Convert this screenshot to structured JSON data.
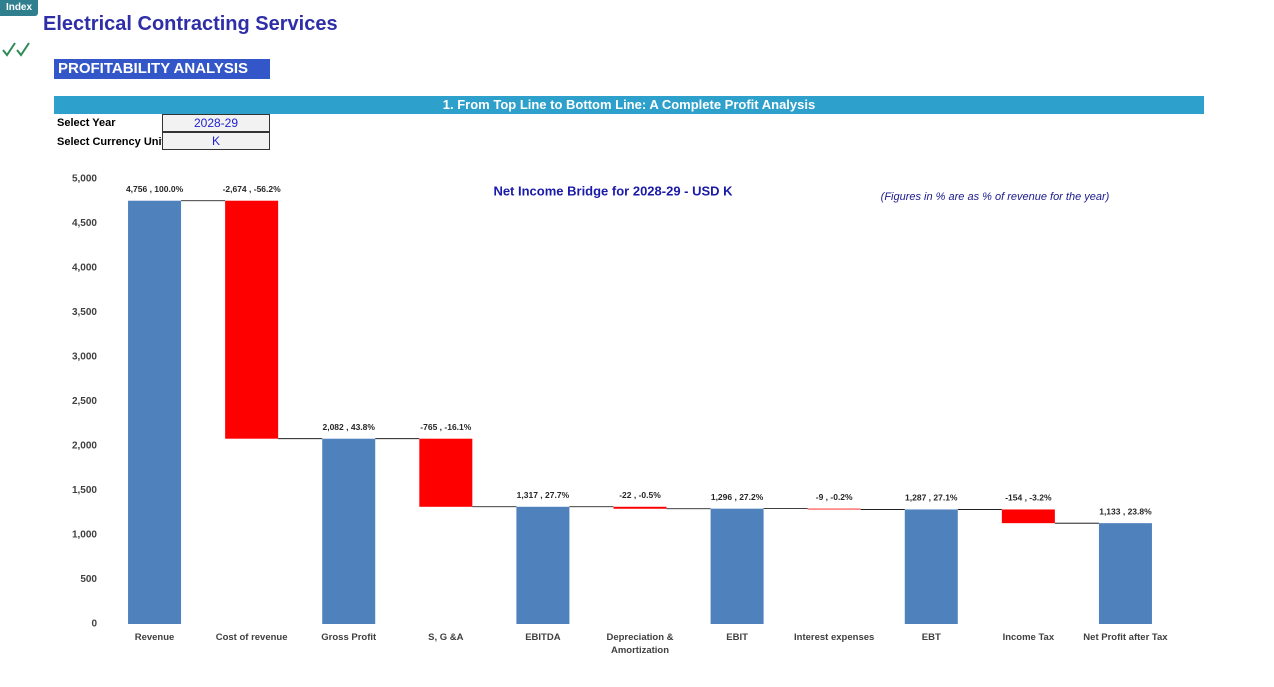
{
  "header": {
    "button": "Index",
    "title": "Electrical Contracting Services",
    "section": "PROFITABILITY ANALYSIS",
    "banner": "1. From Top Line to Bottom Line: A Complete Profit Analysis"
  },
  "controls": {
    "year_label": "Select Year",
    "year": "2028-29",
    "unit_label": "Select Currency Unit",
    "unit": "K"
  },
  "chart_data": {
    "type": "waterfall",
    "title": "Net Income Bridge for 2028-29 - USD K",
    "note": "(Figures in % are as % of revenue for the year)",
    "categories": [
      "Revenue",
      "Cost of revenue",
      "Gross Profit",
      "S, G &A",
      "EBITDA",
      "Depreciation & Amortization",
      "EBIT",
      "Interest expenses",
      "EBT",
      "Income Tax",
      "Net Profit after Tax"
    ],
    "values": [
      4756,
      -2674,
      2082,
      -765,
      1317,
      -22,
      1296,
      -9,
      1287,
      -154,
      1133
    ],
    "value_labels": [
      "4,756 , 100.0%",
      "-2,674 , -56.2%",
      "2,082 , 43.8%",
      "-765 , -16.1%",
      "1,317 , 27.7%",
      "-22 , -0.5%",
      "1,296 , 27.2%",
      "-9 , -0.2%",
      "1,287 , 27.1%",
      "-154 , -3.2%",
      "1,133 , 23.8%"
    ],
    "color": "#4f81bd",
    "negative_color": "#ff0000",
    "ylim": [
      0,
      5000
    ],
    "yticks": [
      0,
      500,
      {
        "value": 1000,
        "label": "1,000"
      },
      {
        "value": 1500,
        "label": "1,500"
      },
      {
        "value": 2000,
        "label": "2,000"
      },
      {
        "value": 2500,
        "label": "2,500"
      },
      {
        "value": 3000,
        "label": "3,000"
      },
      {
        "value": 3500,
        "label": "3,500"
      },
      {
        "value": 4000,
        "label": "4,000"
      },
      {
        "value": 4500,
        "label": "4,500"
      },
      {
        "value": 5000,
        "label": "5,000"
      }
    ]
  }
}
